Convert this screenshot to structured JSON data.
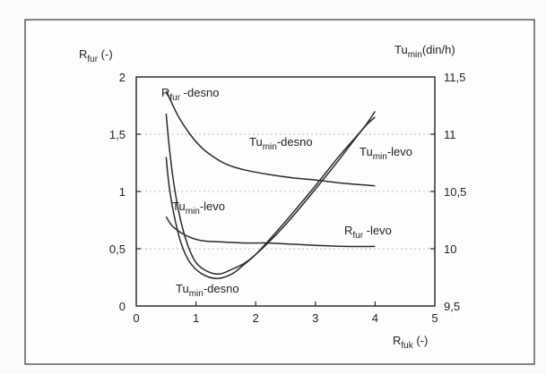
{
  "chart_data": {
    "type": "line",
    "title": "",
    "xlabel": {
      "main": "R",
      "sub": "fuk",
      "unit": " (-)"
    },
    "ylabel_left": {
      "main": "R",
      "sub": "fur",
      "unit": " (-)"
    },
    "ylabel_right": {
      "main": "Tu",
      "sub": "min",
      "unit": "(din/h)"
    },
    "xlim": [
      0,
      5
    ],
    "ylim_left": [
      0,
      2
    ],
    "ylim_right": [
      9.5,
      11.5
    ],
    "grid": "horizontal",
    "x_ticks": [
      "0",
      "1",
      "2",
      "3",
      "4",
      "5"
    ],
    "y_left_ticks": [
      "0",
      "0,5",
      "1",
      "1,5",
      "2"
    ],
    "y_right_ticks": [
      "9,5",
      "10",
      "10,5",
      "11",
      "11,5"
    ],
    "series": [
      {
        "name": "R_fur-desno",
        "axis": "left",
        "label": {
          "main": "R",
          "sub": "fur",
          "suffix": " -desno"
        },
        "points": [
          [
            0.5,
            1.88
          ],
          [
            0.7,
            1.66
          ],
          [
            0.9,
            1.5
          ],
          [
            1.1,
            1.38
          ],
          [
            1.3,
            1.3
          ],
          [
            1.5,
            1.24
          ],
          [
            1.8,
            1.19
          ],
          [
            2.2,
            1.15
          ],
          [
            2.6,
            1.12
          ],
          [
            3,
            1.1
          ],
          [
            3.5,
            1.07
          ],
          [
            4,
            1.05
          ]
        ]
      },
      {
        "name": "R_fur-levo",
        "axis": "left",
        "label": {
          "main": "R",
          "sub": "fur",
          "suffix": " -levo"
        },
        "points": [
          [
            0.5,
            0.78
          ],
          [
            0.6,
            0.7
          ],
          [
            0.75,
            0.64
          ],
          [
            0.9,
            0.6
          ],
          [
            1.1,
            0.57
          ],
          [
            1.4,
            0.56
          ],
          [
            1.8,
            0.55
          ],
          [
            2.2,
            0.55
          ],
          [
            2.6,
            0.54
          ],
          [
            3,
            0.53
          ],
          [
            3.5,
            0.52
          ],
          [
            4,
            0.52
          ]
        ]
      },
      {
        "name": "Tu_min-levo",
        "axis": "right",
        "label": {
          "main": "Tu",
          "sub": "min",
          "suffix": "-levo"
        },
        "points": [
          [
            0.5,
            11.18
          ],
          [
            0.55,
            10.9
          ],
          [
            0.62,
            10.6
          ],
          [
            0.72,
            10.3
          ],
          [
            0.85,
            10.05
          ],
          [
            1,
            9.88
          ],
          [
            1.2,
            9.8
          ],
          [
            1.4,
            9.78
          ],
          [
            1.6,
            9.82
          ],
          [
            1.8,
            9.87
          ],
          [
            2,
            9.95
          ],
          [
            2.3,
            10.1
          ],
          [
            2.6,
            10.27
          ],
          [
            3,
            10.52
          ],
          [
            3.4,
            10.78
          ],
          [
            3.8,
            11.05
          ],
          [
            4,
            11.15
          ]
        ]
      },
      {
        "name": "Tu_min-desno",
        "axis": "right",
        "label": {
          "main": "Tu",
          "sub": "min",
          "suffix": "-desno"
        },
        "points": [
          [
            0.5,
            10.8
          ],
          [
            0.55,
            10.55
          ],
          [
            0.63,
            10.3
          ],
          [
            0.75,
            10.05
          ],
          [
            0.9,
            9.88
          ],
          [
            1.1,
            9.78
          ],
          [
            1.35,
            9.74
          ],
          [
            1.6,
            9.78
          ],
          [
            1.8,
            9.86
          ],
          [
            2,
            9.95
          ],
          [
            2.3,
            10.12
          ],
          [
            2.6,
            10.3
          ],
          [
            3,
            10.55
          ],
          [
            3.4,
            10.81
          ],
          [
            3.8,
            11.05
          ],
          [
            4,
            11.2
          ]
        ]
      }
    ]
  }
}
